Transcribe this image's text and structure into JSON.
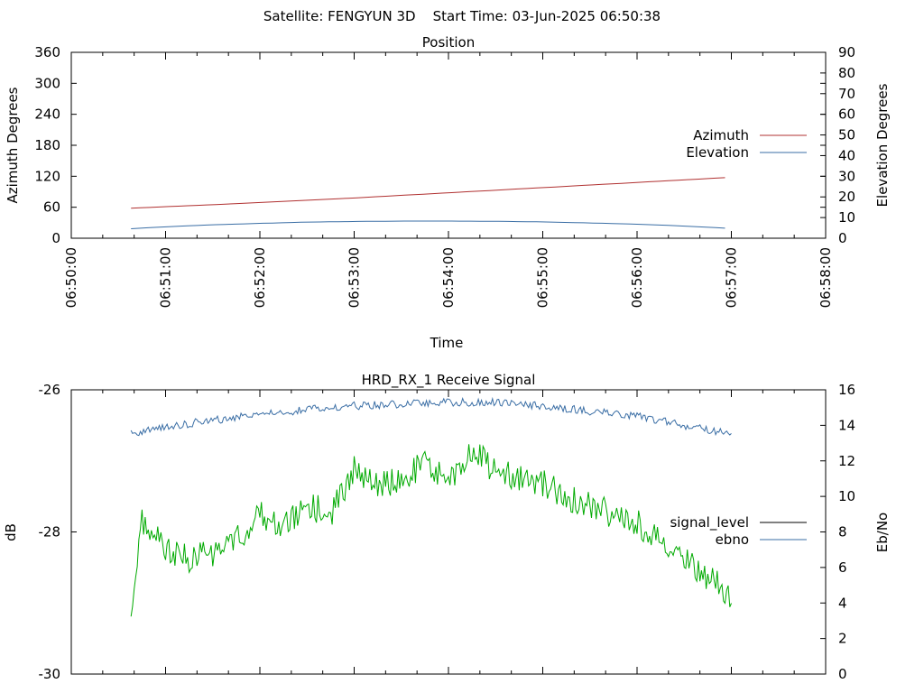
{
  "header": {
    "title": "Satellite: FENGYUN 3D    Start Time: 03-Jun-2025 06:50:38"
  },
  "chart_data": [
    {
      "type": "line",
      "title": "Position",
      "xlabel": "Time",
      "ylabel": "Azimuth Degrees",
      "y2label": "Elevation Degrees",
      "xlim": [
        "06:50:00",
        "06:58:00"
      ],
      "xticks": [
        "06:50:00",
        "06:51:00",
        "06:52:00",
        "06:53:00",
        "06:54:00",
        "06:55:00",
        "06:56:00",
        "06:57:00",
        "06:58:00"
      ],
      "ylim": [
        0,
        360
      ],
      "yticks": [
        "0",
        "60",
        "120",
        "180",
        "240",
        "300",
        "360"
      ],
      "y2lim": [
        0,
        90
      ],
      "y2ticks": [
        "0",
        "10",
        "20",
        "30",
        "40",
        "50",
        "60",
        "70",
        "80",
        "90"
      ],
      "legend": "right",
      "series": [
        {
          "name": "Azimuth",
          "axis": "left",
          "color": "#b03030",
          "points": [
            [
              "06:50:38",
              58
            ],
            [
              "06:51:00",
              61
            ],
            [
              "06:52:00",
              69
            ],
            [
              "06:53:00",
              78
            ],
            [
              "06:54:00",
              88
            ],
            [
              "06:55:00",
              98
            ],
            [
              "06:56:00",
              108
            ],
            [
              "06:57:00",
              118
            ]
          ]
        },
        {
          "name": "Elevation",
          "axis": "right",
          "color": "#3a6ea5",
          "points": [
            [
              "06:50:38",
              4.6
            ],
            [
              "06:51:00",
              5.5
            ],
            [
              "06:51:30",
              6.5
            ],
            [
              "06:52:00",
              7.2
            ],
            [
              "06:52:30",
              7.8
            ],
            [
              "06:53:00",
              8.1
            ],
            [
              "06:53:30",
              8.3
            ],
            [
              "06:54:00",
              8.3
            ],
            [
              "06:54:30",
              8.2
            ],
            [
              "06:55:00",
              7.9
            ],
            [
              "06:55:30",
              7.4
            ],
            [
              "06:56:00",
              6.8
            ],
            [
              "06:56:30",
              5.9
            ],
            [
              "06:57:00",
              4.7
            ]
          ]
        }
      ]
    },
    {
      "type": "line",
      "title": "HRD_RX_1 Receive Signal",
      "xlabel": "",
      "ylabel": "dB",
      "y2label": "Eb/No",
      "xlim": [
        "06:50:00",
        "06:58:00"
      ],
      "ylim": [
        -30,
        -26
      ],
      "yticks": [
        "-30",
        "-28",
        "-26"
      ],
      "y2lim": [
        0,
        16
      ],
      "y2ticks": [
        "0",
        "2",
        "4",
        "6",
        "8",
        "10",
        "12",
        "14",
        "16"
      ],
      "legend": "right",
      "series": [
        {
          "name": "signal_level",
          "axis": "left",
          "color": "#000000",
          "legend_only": true,
          "points": []
        },
        {
          "name": "ebno",
          "axis": "right",
          "color": "#3a6ea5",
          "points": [
            [
              "06:50:38",
              13.5
            ],
            [
              "06:51:00",
              13.9
            ],
            [
              "06:51:30",
              14.3
            ],
            [
              "06:52:00",
              14.6
            ],
            [
              "06:52:30",
              14.9
            ],
            [
              "06:53:00",
              15.1
            ],
            [
              "06:53:30",
              15.2
            ],
            [
              "06:54:00",
              15.3
            ],
            [
              "06:54:30",
              15.3
            ],
            [
              "06:55:00",
              15.1
            ],
            [
              "06:55:30",
              14.8
            ],
            [
              "06:56:00",
              14.5
            ],
            [
              "06:56:30",
              14.0
            ],
            [
              "06:57:00",
              13.5
            ]
          ]
        },
        {
          "name": "",
          "axis": "right",
          "color": "#00aa00",
          "points": [
            [
              "06:50:38",
              3.5
            ],
            [
              "06:50:45",
              8.5
            ],
            [
              "06:51:00",
              7.0
            ],
            [
              "06:51:15",
              6.5
            ],
            [
              "06:51:30",
              6.8
            ],
            [
              "06:51:45",
              7.5
            ],
            [
              "06:52:00",
              9.0
            ],
            [
              "06:52:15",
              8.5
            ],
            [
              "06:52:30",
              9.5
            ],
            [
              "06:52:45",
              9.0
            ],
            [
              "06:53:00",
              11.5
            ],
            [
              "06:53:15",
              10.5
            ],
            [
              "06:53:30",
              11.0
            ],
            [
              "06:53:45",
              11.8
            ],
            [
              "06:54:00",
              11.0
            ],
            [
              "06:54:15",
              12.5
            ],
            [
              "06:54:30",
              11.5
            ],
            [
              "06:54:45",
              11.0
            ],
            [
              "06:55:00",
              10.8
            ],
            [
              "06:55:15",
              10.0
            ],
            [
              "06:55:30",
              9.5
            ],
            [
              "06:55:45",
              9.0
            ],
            [
              "06:56:00",
              8.5
            ],
            [
              "06:56:15",
              7.5
            ],
            [
              "06:56:30",
              6.5
            ],
            [
              "06:56:45",
              5.5
            ],
            [
              "06:57:00",
              4.5
            ]
          ]
        }
      ]
    }
  ]
}
